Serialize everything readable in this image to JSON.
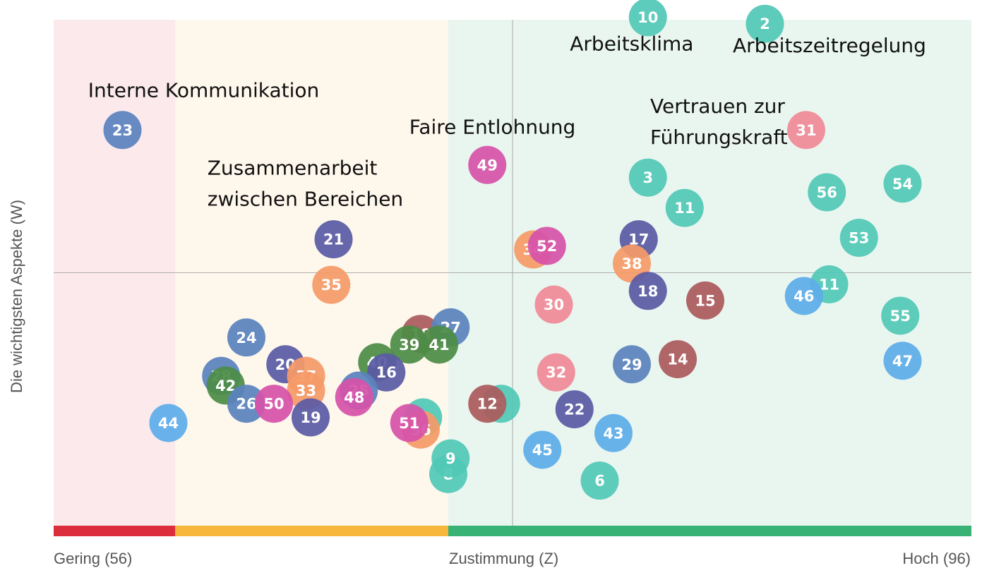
{
  "chart_data": {
    "type": "scatter",
    "xlabel": "Zustimmung (Z)",
    "ylabel": "Die wichtigsten Aspekte (W)",
    "x_tick_low": "Gering (56)",
    "x_tick_high": "Hoch (96)",
    "xlim": [
      56,
      96
    ],
    "ylim": [
      0,
      100
    ],
    "zones": [
      {
        "from": 56,
        "to": 61.3,
        "band_color": "#dc2d3c",
        "bg_color": "#fbe9ec"
      },
      {
        "from": 61.3,
        "to": 73.2,
        "band_color": "#f6b73c",
        "bg_color": "#fef7ec"
      },
      {
        "from": 73.2,
        "to": 96,
        "band_color": "#38b275",
        "bg_color": "#e9f6ef"
      }
    ],
    "reference_x": 76,
    "reference_y": 50,
    "colors": {
      "blue": "#5a82bd",
      "purple": "#5a5aa5",
      "teal": "#52c8b7",
      "pink": "#f08a97",
      "orange": "#f59a67",
      "magenta": "#d653a9",
      "brown": "#ab5a5d",
      "green": "#4c8c46",
      "lightblue": "#5eacea"
    },
    "points": [
      {
        "id": "23",
        "x": 59.0,
        "y": 78.2,
        "color": "blue"
      },
      {
        "id": "10",
        "x": 81.9,
        "y": 100.5,
        "color": "teal"
      },
      {
        "id": "2",
        "x": 87.0,
        "y": 99.2,
        "color": "teal"
      },
      {
        "id": "31",
        "x": 88.8,
        "y": 78.2,
        "color": "pink"
      },
      {
        "id": "49",
        "x": 74.9,
        "y": 71.3,
        "color": "magenta"
      },
      {
        "id": "3",
        "x": 81.9,
        "y": 68.8,
        "color": "teal"
      },
      {
        "id": "54",
        "x": 93.0,
        "y": 67.6,
        "color": "teal"
      },
      {
        "id": "56",
        "x": 89.7,
        "y": 65.9,
        "color": "teal"
      },
      {
        "id": "11",
        "x": 83.5,
        "y": 62.8,
        "color": "teal"
      },
      {
        "id": "53",
        "x": 91.1,
        "y": 56.9,
        "color": "teal"
      },
      {
        "id": "21",
        "x": 68.2,
        "y": 56.6,
        "color": "purple"
      },
      {
        "id": "17",
        "x": 81.5,
        "y": 56.6,
        "color": "purple"
      },
      {
        "id": "34",
        "x": 76.9,
        "y": 54.6,
        "color": "orange"
      },
      {
        "id": "52",
        "x": 77.5,
        "y": 55.3,
        "color": "magenta"
      },
      {
        "id": "38",
        "x": 81.2,
        "y": 51.8,
        "color": "orange"
      },
      {
        "id": "35",
        "x": 68.1,
        "y": 47.6,
        "color": "orange"
      },
      {
        "id": "18",
        "x": 81.9,
        "y": 46.4,
        "color": "purple"
      },
      {
        "id": "11",
        "x": 89.8,
        "y": 47.7,
        "color": "teal"
      },
      {
        "id": "46",
        "x": 88.7,
        "y": 45.4,
        "color": "lightblue"
      },
      {
        "id": "15",
        "x": 84.4,
        "y": 44.5,
        "color": "brown"
      },
      {
        "id": "30",
        "x": 77.8,
        "y": 43.7,
        "color": "pink"
      },
      {
        "id": "55",
        "x": 92.9,
        "y": 41.5,
        "color": "teal"
      },
      {
        "id": "18",
        "x": 72.0,
        "y": 37.9,
        "color": "brown"
      },
      {
        "id": "27",
        "x": 73.3,
        "y": 39.2,
        "color": "blue"
      },
      {
        "id": "24",
        "x": 64.4,
        "y": 37.2,
        "color": "blue"
      },
      {
        "id": "39",
        "x": 71.5,
        "y": 35.8,
        "color": "green"
      },
      {
        "id": "41",
        "x": 72.8,
        "y": 35.8,
        "color": "green"
      },
      {
        "id": "14",
        "x": 83.2,
        "y": 32.9,
        "color": "brown"
      },
      {
        "id": "47",
        "x": 93.0,
        "y": 32.6,
        "color": "lightblue"
      },
      {
        "id": "20",
        "x": 66.1,
        "y": 31.9,
        "color": "purple"
      },
      {
        "id": "40",
        "x": 70.1,
        "y": 32.3,
        "color": "green"
      },
      {
        "id": "16",
        "x": 70.5,
        "y": 30.3,
        "color": "purple"
      },
      {
        "id": "32",
        "x": 77.9,
        "y": 30.3,
        "color": "pink"
      },
      {
        "id": "29",
        "x": 81.2,
        "y": 31.9,
        "color": "blue"
      },
      {
        "id": "28",
        "x": 63.3,
        "y": 29.6,
        "color": "blue"
      },
      {
        "id": "37",
        "x": 67.0,
        "y": 29.6,
        "color": "orange"
      },
      {
        "id": "42",
        "x": 63.5,
        "y": 27.7,
        "color": "green"
      },
      {
        "id": "33",
        "x": 67.0,
        "y": 26.7,
        "color": "orange"
      },
      {
        "id": "25",
        "x": 69.3,
        "y": 26.7,
        "color": "blue"
      },
      {
        "id": "48",
        "x": 69.1,
        "y": 25.4,
        "color": "magenta"
      },
      {
        "id": "26",
        "x": 64.4,
        "y": 24.1,
        "color": "blue"
      },
      {
        "id": "50",
        "x": 65.6,
        "y": 24.1,
        "color": "magenta"
      },
      {
        "id": "5",
        "x": 75.5,
        "y": 24.1,
        "color": "teal"
      },
      {
        "id": "12",
        "x": 74.9,
        "y": 24.1,
        "color": "brown"
      },
      {
        "id": "22",
        "x": 78.7,
        "y": 23.0,
        "color": "purple"
      },
      {
        "id": "44",
        "x": 61.0,
        "y": 20.3,
        "color": "lightblue"
      },
      {
        "id": "19",
        "x": 67.2,
        "y": 21.4,
        "color": "purple"
      },
      {
        "id": "7",
        "x": 72.1,
        "y": 21.4,
        "color": "teal"
      },
      {
        "id": "36",
        "x": 72.0,
        "y": 19.0,
        "color": "orange"
      },
      {
        "id": "51",
        "x": 71.5,
        "y": 20.3,
        "color": "magenta"
      },
      {
        "id": "43",
        "x": 80.4,
        "y": 18.3,
        "color": "lightblue"
      },
      {
        "id": "45",
        "x": 77.3,
        "y": 15.0,
        "color": "lightblue"
      },
      {
        "id": "8",
        "x": 73.2,
        "y": 10.2,
        "color": "teal"
      },
      {
        "id": "9",
        "x": 73.3,
        "y": 13.3,
        "color": "teal"
      },
      {
        "id": "6",
        "x": 79.8,
        "y": 8.9,
        "color": "teal"
      }
    ],
    "annotations": [
      {
        "lines": [
          "Interne Kommunikation"
        ],
        "x": 57.5,
        "y": 84.7
      },
      {
        "lines": [
          "Arbeitsklima"
        ],
        "x": 78.5,
        "y": 93.9
      },
      {
        "lines": [
          "Arbeitszeitregelung"
        ],
        "x": 85.6,
        "y": 93.6
      },
      {
        "lines": [
          "Faire Entlohnung"
        ],
        "x": 71.5,
        "y": 77.5
      },
      {
        "lines": [
          "Vertrauen zur",
          "Führungskraft"
        ],
        "x": 82.0,
        "y": 81.6
      },
      {
        "lines": [
          "Zusammenarbeit",
          "zwischen Bereichen"
        ],
        "x": 62.7,
        "y": 69.4
      }
    ]
  }
}
